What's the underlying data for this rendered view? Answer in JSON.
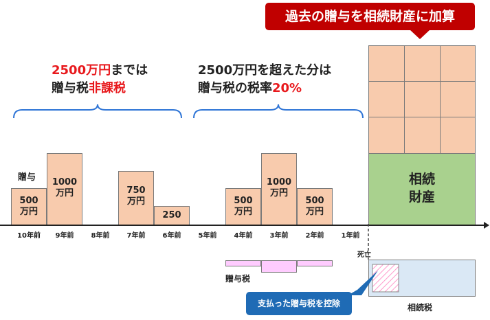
{
  "banner": {
    "text": "過去の贈与を相続財産に加算",
    "color": "#c00000"
  },
  "headline_left": {
    "line1_red": "2500万円",
    "line1_rest": "までは",
    "line2_prefix": "贈与税",
    "line2_red": "非課税"
  },
  "headline_right": {
    "line1": "2500万円を超えた分は",
    "line2_prefix": "贈与税の税率",
    "line2_red": "20%"
  },
  "gift_caption": "贈与",
  "bars": [
    {
      "when": "10年前",
      "label": "500\n万円"
    },
    {
      "when": "9年前",
      "label": "1000\n万円"
    },
    {
      "when": "7年前",
      "label": "750\n万円"
    },
    {
      "when": "6年前",
      "label": "250"
    },
    {
      "when": "4年前",
      "label": "500\n万円"
    },
    {
      "when": "3年前",
      "label": "1000\n万円"
    },
    {
      "when": "2年前",
      "label": "500\n万円"
    }
  ],
  "ticks": [
    "10年前",
    "9年前",
    "8年前",
    "7年前",
    "6年前",
    "5年前",
    "4年前",
    "3年前",
    "2年前",
    "1年前"
  ],
  "estate_label_1": "相続",
  "estate_label_2": "財産",
  "death_label": "死亡",
  "gift_tax_label": "贈与税",
  "inheritance_tax_label": "相続税",
  "credit_callout": "支払った贈与税を控除",
  "colors": {
    "bar_fill": "#f8cbad",
    "estate_fill": "#a9d18e",
    "gift_tax_fill": "#ffccff",
    "inheritance_fill": "#dae8f5",
    "callout": "#1f6bb5",
    "accent_red": "#e8191d"
  }
}
